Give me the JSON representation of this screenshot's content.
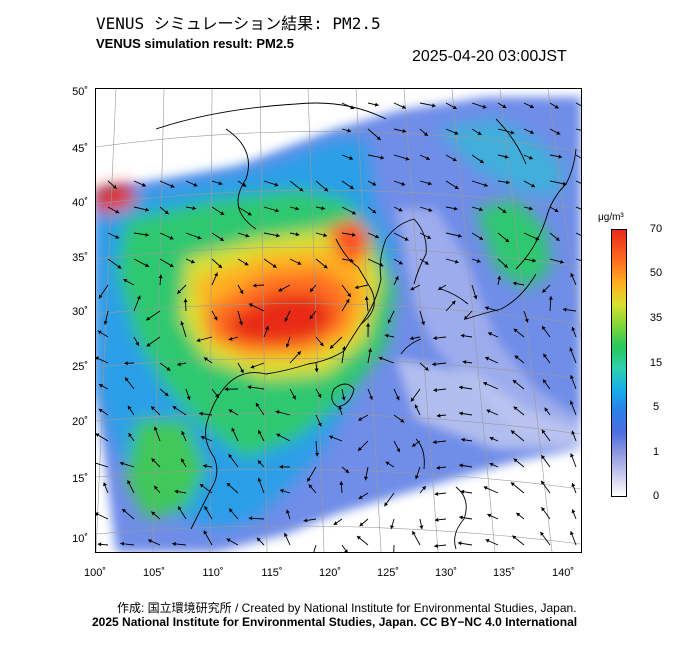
{
  "header": {
    "title_jp": "VENUS シミュレーション結果: PM2.5",
    "title_en": "VENUS simulation result: PM2.5",
    "timestamp": "2025-04-20 03:00JST"
  },
  "map": {
    "lat_labels": [
      "50˚",
      "45˚",
      "40˚",
      "35˚",
      "30˚",
      "25˚",
      "20˚",
      "15˚",
      "10˚"
    ],
    "lon_labels": [
      "100˚",
      "105˚",
      "110˚",
      "115˚",
      "120˚",
      "125˚",
      "130˚",
      "135˚",
      "140˚"
    ],
    "lat_range": [
      9,
      51
    ],
    "lon_range": [
      100,
      141
    ],
    "colors": {
      "ocean_clean": "#ffffff",
      "low": "#6f8de8",
      "moderate": "#2fbf6b",
      "high": "#ffb020",
      "very_high": "#e82a18",
      "coast": "#000000"
    }
  },
  "colorbar": {
    "unit": "μg/m³",
    "ticks": [
      "70",
      "50",
      "35",
      "15",
      "5",
      "1",
      "0"
    ],
    "tick_values": [
      70,
      50,
      35,
      15,
      5,
      1,
      0
    ]
  },
  "footer": {
    "credit": "作成: 国立環境研究所 / Created by National Institute for Environmental Studies, Japan.",
    "copyright": "2025 National Institute for Environmental Studies, Japan. CC BY−NC 4.0 International"
  }
}
